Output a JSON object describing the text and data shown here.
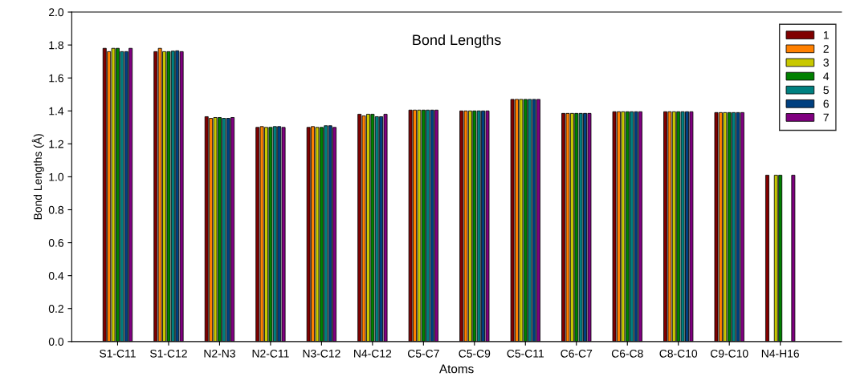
{
  "chart_data": {
    "type": "bar",
    "title": "Bond Lengths",
    "xlabel": "Atoms",
    "ylabel": "Bond Lengths (Å)",
    "categories": [
      "S1-C11",
      "S1-C12",
      "N2-N3",
      "N2-C11",
      "N3-C12",
      "N4-C12",
      "C5-C7",
      "C5-C9",
      "C5-C11",
      "C6-C7",
      "C6-C8",
      "C8-C10",
      "C9-C10",
      "N4-H16"
    ],
    "series": [
      {
        "name": "1",
        "color": "#800000",
        "values": [
          1.78,
          1.76,
          1.365,
          1.3,
          1.3,
          1.38,
          1.405,
          1.4,
          1.47,
          1.385,
          1.395,
          1.395,
          1.39,
          1.01
        ]
      },
      {
        "name": "2",
        "color": "#ff8000",
        "values": [
          1.76,
          1.78,
          1.355,
          1.305,
          1.305,
          1.37,
          1.405,
          1.4,
          1.47,
          1.385,
          1.395,
          1.395,
          1.39,
          null
        ]
      },
      {
        "name": "3",
        "color": "#c8c800",
        "values": [
          1.78,
          1.76,
          1.36,
          1.3,
          1.3,
          1.38,
          1.405,
          1.4,
          1.47,
          1.385,
          1.395,
          1.395,
          1.39,
          1.01
        ]
      },
      {
        "name": "4",
        "color": "#008000",
        "values": [
          1.78,
          1.76,
          1.36,
          1.3,
          1.3,
          1.38,
          1.405,
          1.4,
          1.47,
          1.385,
          1.395,
          1.395,
          1.39,
          1.01
        ]
      },
      {
        "name": "5",
        "color": "#008080",
        "values": [
          1.76,
          1.763,
          1.355,
          1.305,
          1.31,
          1.365,
          1.405,
          1.4,
          1.47,
          1.385,
          1.395,
          1.395,
          1.39,
          null
        ]
      },
      {
        "name": "6",
        "color": "#004080",
        "values": [
          1.76,
          1.765,
          1.355,
          1.305,
          1.31,
          1.365,
          1.405,
          1.4,
          1.47,
          1.385,
          1.395,
          1.395,
          1.39,
          null
        ]
      },
      {
        "name": "7",
        "color": "#800080",
        "values": [
          1.78,
          1.76,
          1.36,
          1.3,
          1.3,
          1.38,
          1.405,
          1.4,
          1.47,
          1.385,
          1.395,
          1.395,
          1.39,
          1.01
        ]
      }
    ],
    "ylim": [
      0,
      2.0
    ],
    "yticks": [
      {
        "value": 0,
        "label": "0.0"
      },
      {
        "value": 0.2,
        "label": "0.2"
      },
      {
        "value": 0.4,
        "label": "0.4"
      },
      {
        "value": 0.6,
        "label": "0.6"
      },
      {
        "value": 0.8,
        "label": "0.8"
      },
      {
        "value": 1.0,
        "label": "1.0"
      },
      {
        "value": 1.2,
        "label": "1.2"
      },
      {
        "value": 1.4,
        "label": "1.4"
      },
      {
        "value": 1.6,
        "label": "1.6"
      },
      {
        "value": 1.8,
        "label": "1.8"
      },
      {
        "value": 2.0,
        "label": "2.0"
      }
    ],
    "legend": "top right",
    "grid": false
  }
}
